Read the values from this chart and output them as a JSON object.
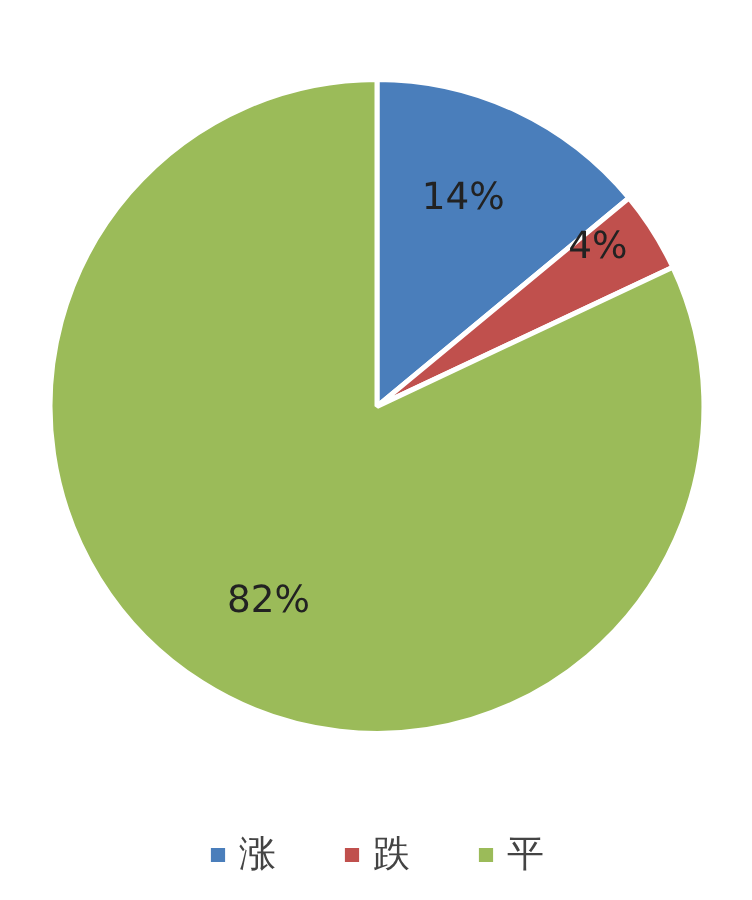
{
  "chart_data": {
    "type": "pie",
    "categories": [
      "涨",
      "跌",
      "平"
    ],
    "values": [
      14,
      4,
      82
    ],
    "colors": [
      "#4a7ebb",
      "#c0504d",
      "#9bbb59"
    ],
    "value_labels": [
      "14%",
      "4%",
      "82%"
    ],
    "legend": "bottom"
  }
}
